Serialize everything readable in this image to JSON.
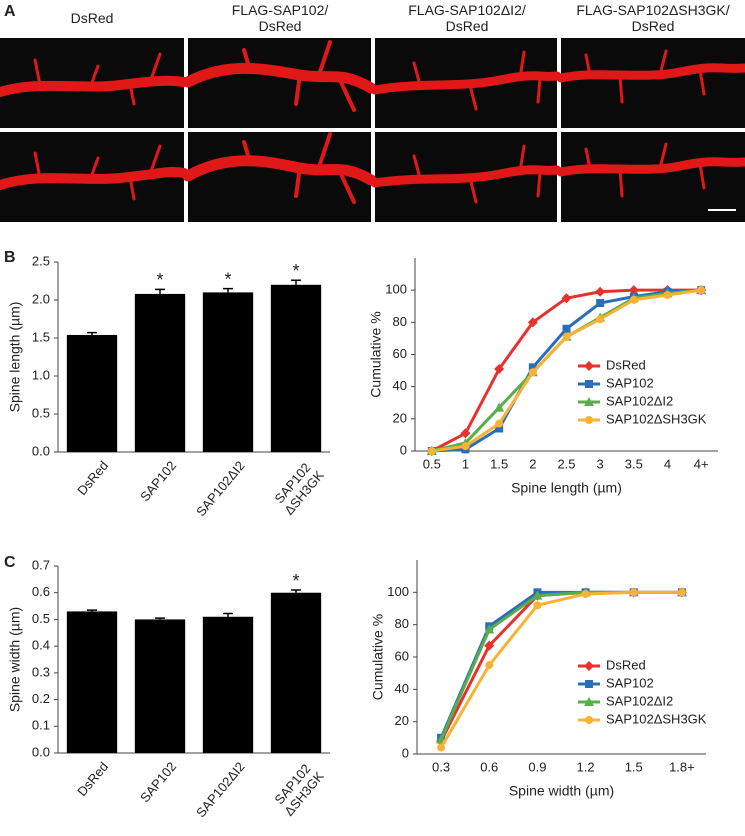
{
  "panel_a": {
    "label": "A",
    "columns": [
      [
        "DsRed"
      ],
      [
        "FLAG-SAP102/",
        "DsRed"
      ],
      [
        "FLAG-SAP102ΔI2/",
        "DsRed"
      ],
      [
        "FLAG-SAP102ΔSH3GK/",
        "DsRed"
      ]
    ]
  },
  "chart_data": [
    {
      "type": "bar",
      "label": "B",
      "ylabel": "Spine length (µm)",
      "categories": [
        "DsRed",
        "SAP102",
        "SAP102ΔI2",
        "SAP102\nΔSH3GK"
      ],
      "values": [
        1.54,
        2.08,
        2.1,
        2.2
      ],
      "errors": [
        0.03,
        0.06,
        0.05,
        0.06
      ],
      "annotations": [
        null,
        "*",
        "*",
        "*"
      ],
      "color": "#000000",
      "ylim": [
        0,
        2.5
      ],
      "yticks": [
        {
          "value": 0,
          "label": "0.0"
        },
        0.5,
        {
          "value": 1,
          "label": "1.0"
        },
        1.5,
        {
          "value": 2,
          "label": "2.0"
        },
        2.5
      ]
    },
    {
      "type": "line",
      "ylabel": "Cumulative %",
      "xlabel": "Spine length (µm)",
      "categories": [
        "0.5",
        "1",
        "1.5",
        "2",
        "2.5",
        "3",
        "3.5",
        "4",
        "4+"
      ],
      "series": [
        {
          "name": "DsRed",
          "color": "#e8312f",
          "marker": "diamond",
          "values": [
            0,
            11,
            51,
            80,
            95,
            99,
            100,
            100,
            100
          ]
        },
        {
          "name": "SAP102",
          "color": "#2a6ebb",
          "marker": "square",
          "values": [
            0,
            1,
            14,
            52,
            76,
            92,
            96,
            99,
            100
          ]
        },
        {
          "name": "SAP102ΔI2",
          "color": "#5aae4a",
          "marker": "triangle",
          "values": [
            0,
            5,
            27,
            49,
            71,
            83,
            95,
            98,
            100
          ]
        },
        {
          "name": "SAP102ΔSH3GK",
          "color": "#f9b233",
          "marker": "circle",
          "values": [
            0,
            3,
            17,
            49,
            71,
            82,
            94,
            97,
            100
          ]
        }
      ],
      "ylim": [
        0,
        120
      ],
      "yticks": [
        0,
        20,
        40,
        60,
        80,
        100
      ],
      "legend": "right"
    },
    {
      "type": "bar",
      "label": "C",
      "ylabel": "Spine width (µm)",
      "categories": [
        "DsRed",
        "SAP102",
        "SAP102ΔI2",
        "SAP102\nΔSH3GK"
      ],
      "values": [
        0.53,
        0.5,
        0.51,
        0.6
      ],
      "errors": [
        0.005,
        0.005,
        0.012,
        0.01
      ],
      "annotations": [
        null,
        null,
        null,
        "*"
      ],
      "color": "#000000",
      "ylim": [
        0,
        0.7
      ],
      "yticks": [
        {
          "value": 0,
          "label": "0.0"
        },
        0.1,
        0.2,
        0.3,
        0.4,
        0.5,
        0.6,
        0.7
      ]
    },
    {
      "type": "line",
      "ylabel": "Cumulative %",
      "xlabel": "Spine width (µm)",
      "categories": [
        "0.3",
        "0.6",
        "0.9",
        "1.2",
        "1.5",
        "1.8+"
      ],
      "series": [
        {
          "name": "DsRed",
          "color": "#e8312f",
          "marker": "diamond",
          "values": [
            8,
            67,
            98,
            100,
            100,
            100
          ]
        },
        {
          "name": "SAP102",
          "color": "#2a6ebb",
          "marker": "square",
          "values": [
            10,
            79,
            100,
            100,
            100,
            100
          ]
        },
        {
          "name": "SAP102ΔI2",
          "color": "#5aae4a",
          "marker": "triangle",
          "values": [
            9,
            77,
            98,
            100,
            100,
            100
          ]
        },
        {
          "name": "SAP102ΔSH3GK",
          "color": "#f9b233",
          "marker": "circle",
          "values": [
            4,
            55,
            92,
            99,
            100,
            100
          ]
        }
      ],
      "ylim": [
        0,
        120
      ],
      "yticks": [
        0,
        20,
        40,
        60,
        80,
        100
      ],
      "legend": "right"
    }
  ]
}
